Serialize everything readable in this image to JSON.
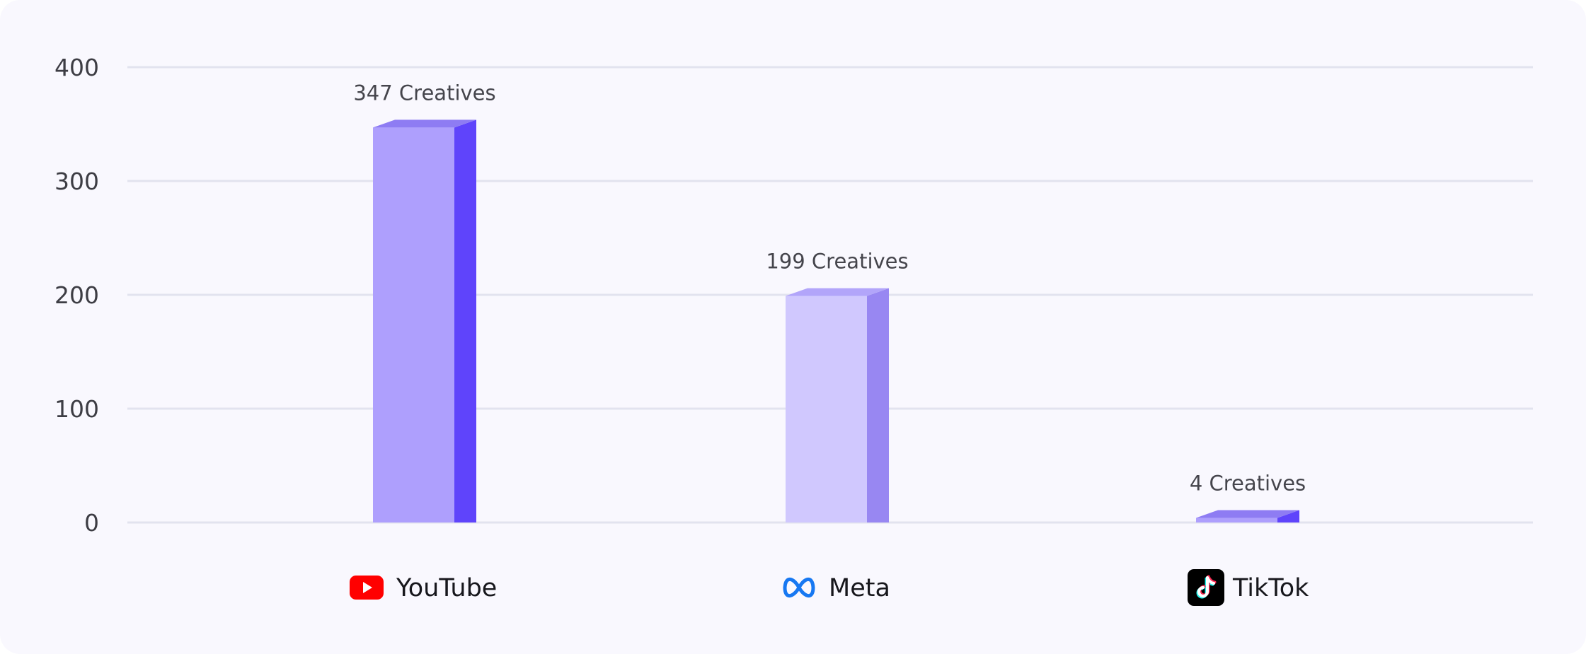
{
  "chart_data": {
    "type": "bar",
    "categories": [
      "YouTube",
      "Meta",
      "TikTok"
    ],
    "values": [
      347,
      199,
      4
    ],
    "data_labels": [
      "347 Creatives",
      "199 Creatives",
      "4 Creatives"
    ],
    "category_icons": [
      "youtube-logo-icon",
      "meta-logo-icon",
      "tiktok-logo-icon"
    ],
    "ylim": [
      0,
      400
    ],
    "yticks": [
      0,
      100,
      200,
      300,
      400
    ],
    "grid": true,
    "bar_colors": [
      {
        "front": "#ae9ffd",
        "side": "#5f44fb",
        "top": "#8e7cf3"
      },
      {
        "front": "#d0c8fe",
        "side": "#9887f2",
        "top": "#b2a5fa"
      },
      {
        "front": "#ae9ffd",
        "side": "#5f44fb",
        "top": "#8e7cf3"
      }
    ],
    "background_color": "#f9f8fe",
    "grid_color": "#e2e3ef"
  }
}
